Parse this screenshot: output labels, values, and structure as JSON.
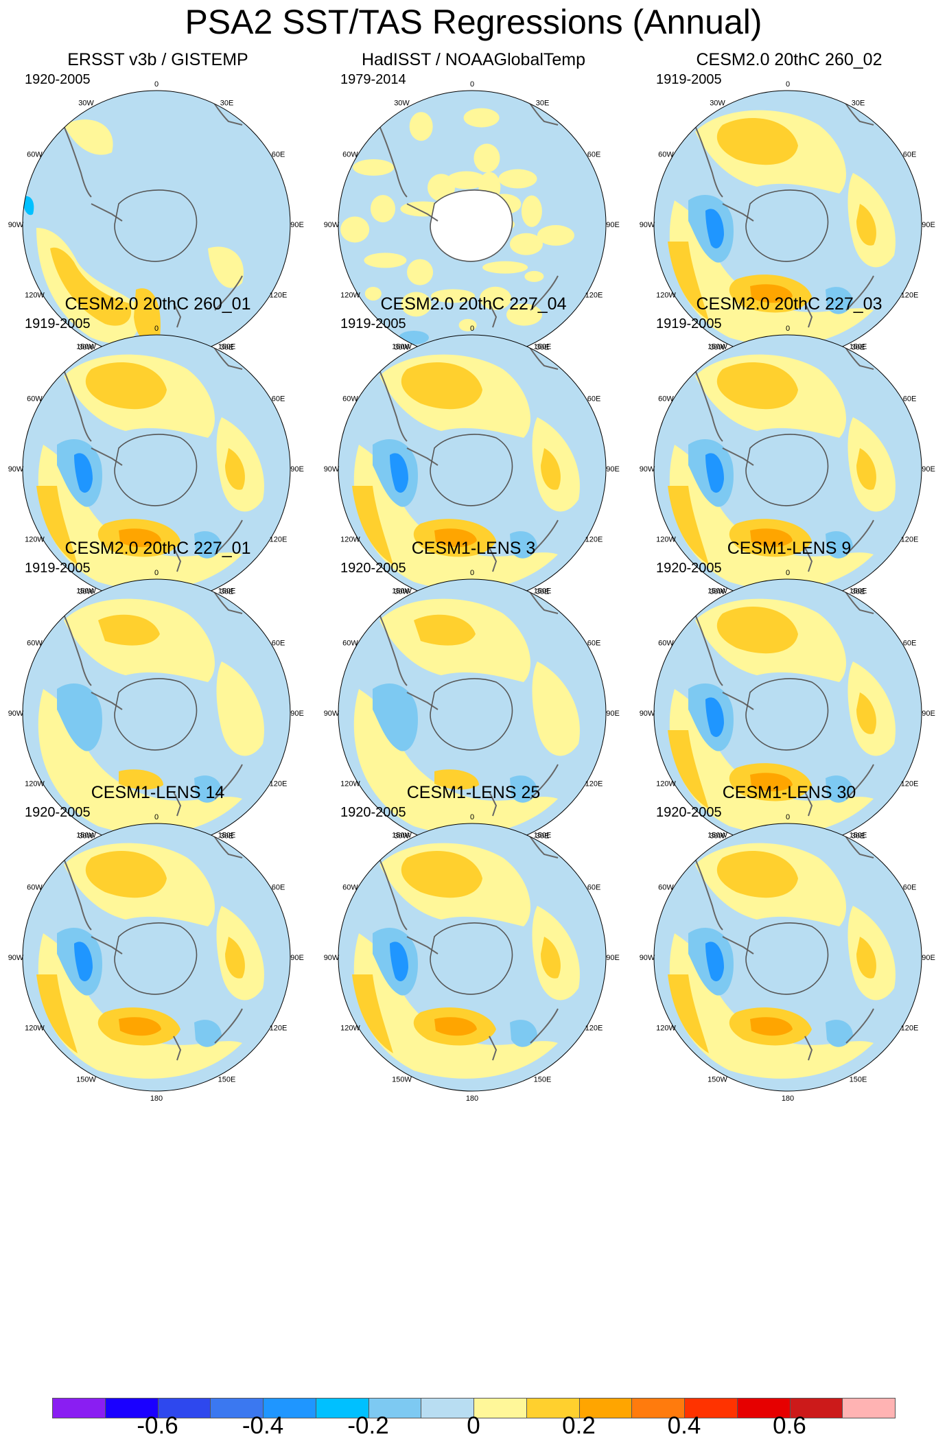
{
  "title": "PSA2 SST/TAS Regressions (Annual)",
  "lon_labels": [
    "0",
    "30E",
    "60E",
    "90E",
    "120E",
    "150E",
    "180",
    "150W",
    "120W",
    "90W",
    "60W",
    "30W"
  ],
  "panels": [
    {
      "title": "ERSST v3b / GISTEMP",
      "period": "1920-2005",
      "style": "obs1"
    },
    {
      "title": "HadISST / NOAAGlobalTemp",
      "period": "1979-2014",
      "style": "obs2"
    },
    {
      "title": "CESM2.0 20thC 260_02",
      "period": "1919-2005",
      "style": "model"
    },
    {
      "title": "CESM2.0 20thC 260_01",
      "period": "1919-2005",
      "style": "model"
    },
    {
      "title": "CESM2.0 20thC 227_04",
      "period": "1919-2005",
      "style": "model"
    },
    {
      "title": "CESM2.0 20thC 227_03",
      "period": "1919-2005",
      "style": "model"
    },
    {
      "title": "CESM2.0 20thC 227_01",
      "period": "1919-2005",
      "style": "model-weak"
    },
    {
      "title": "CESM1-LENS 3",
      "period": "1920-2005",
      "style": "model-weak"
    },
    {
      "title": "CESM1-LENS 9",
      "period": "1920-2005",
      "style": "model"
    },
    {
      "title": "CESM1-LENS 14",
      "period": "1920-2005",
      "style": "model"
    },
    {
      "title": "CESM1-LENS 25",
      "period": "1920-2005",
      "style": "model"
    },
    {
      "title": "CESM1-LENS 30",
      "period": "1920-2005",
      "style": "model"
    }
  ],
  "colorbar": {
    "colors": [
      "#8a1ef2",
      "#1a00ff",
      "#2e48ee",
      "#3b78f0",
      "#1f96ff",
      "#00c0ff",
      "#7dc9f2",
      "#b8ddf2",
      "#fff799",
      "#ffd02e",
      "#ffa500",
      "#ff7b0d",
      "#ff3300",
      "#e60000",
      "#cc1a1a",
      "#ffb3b3"
    ],
    "tick_labels": [
      "-0.6",
      "-0.4",
      "-0.2",
      "0",
      "0.2",
      "0.4",
      "0.6"
    ],
    "tick_values": [
      -0.6,
      -0.4,
      -0.2,
      0,
      0.2,
      0.4,
      0.6
    ],
    "levels": [
      -0.7,
      -0.6,
      -0.5,
      -0.4,
      -0.3,
      -0.2,
      -0.1,
      0,
      0.1,
      0.2,
      0.3,
      0.4,
      0.5,
      0.6,
      0.7
    ]
  }
}
